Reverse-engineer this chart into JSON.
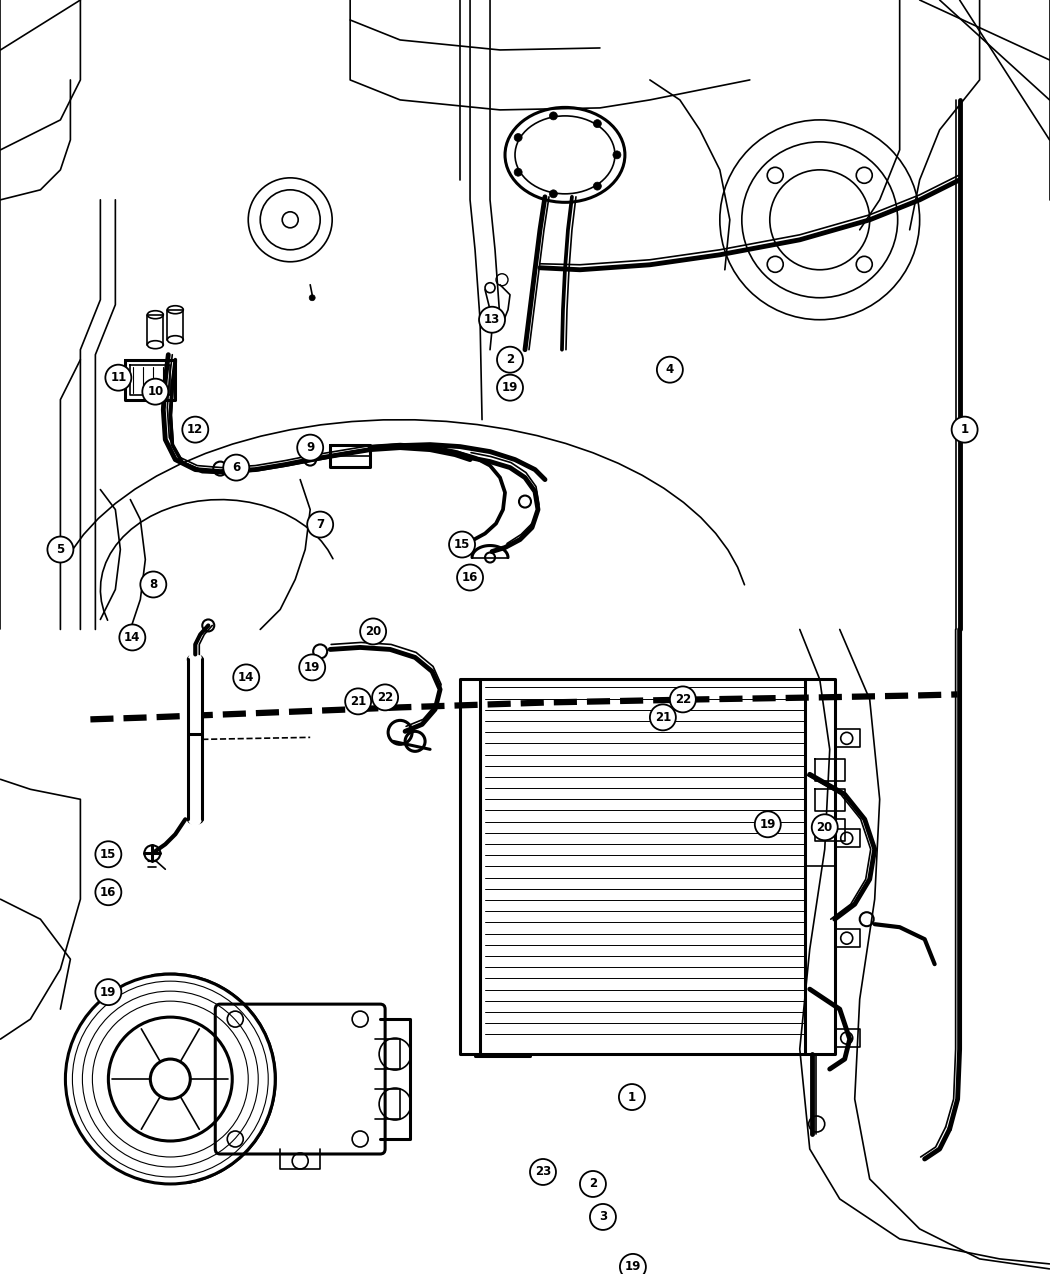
{
  "background_color": "#ffffff",
  "line_color": "#000000",
  "fig_width": 10.5,
  "fig_height": 12.75,
  "dpi": 100,
  "callouts_lower": [
    [
      107,
      990,
      "19"
    ],
    [
      107,
      855,
      "15"
    ],
    [
      107,
      890,
      "16"
    ],
    [
      245,
      680,
      "14"
    ],
    [
      310,
      670,
      "19"
    ],
    [
      370,
      630,
      "20"
    ],
    [
      355,
      700,
      "21"
    ],
    [
      380,
      695,
      "22"
    ],
    [
      660,
      720,
      "21"
    ],
    [
      680,
      700,
      "22"
    ],
    [
      765,
      820,
      "19"
    ],
    [
      820,
      830,
      "20"
    ],
    [
      540,
      1175,
      "23"
    ],
    [
      630,
      1100,
      "1"
    ],
    [
      590,
      1185,
      "2"
    ],
    [
      600,
      1220,
      "3"
    ],
    [
      630,
      1270,
      "19"
    ]
  ],
  "callouts_upper": [
    [
      965,
      430,
      "1"
    ],
    [
      508,
      360,
      "2"
    ],
    [
      60,
      560,
      "5"
    ],
    [
      234,
      470,
      "6"
    ],
    [
      318,
      530,
      "7"
    ],
    [
      155,
      580,
      "8"
    ],
    [
      310,
      450,
      "9"
    ],
    [
      153,
      395,
      "10"
    ],
    [
      118,
      380,
      "11"
    ],
    [
      192,
      430,
      "12"
    ],
    [
      490,
      320,
      "13"
    ],
    [
      133,
      640,
      "14"
    ],
    [
      460,
      545,
      "15"
    ],
    [
      468,
      580,
      "16"
    ],
    [
      508,
      390,
      "19"
    ],
    [
      668,
      365,
      "4"
    ]
  ]
}
